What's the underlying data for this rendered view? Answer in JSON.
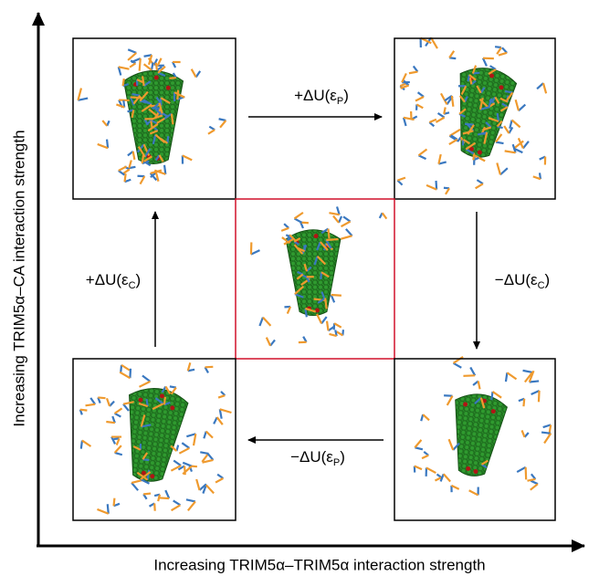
{
  "axes": {
    "y_label": "Increasing TRIM5α–CA interaction strength",
    "x_label": "Increasing TRIM5α–TRIM5α interaction strength"
  },
  "transitions": [
    {
      "text": "+ΔU(ε",
      "sub": "P",
      "close": ")"
    },
    {
      "text": "−ΔU(ε",
      "sub": "C",
      "close": ")"
    },
    {
      "text": "−ΔU(ε",
      "sub": "P",
      "close": ")"
    },
    {
      "text": "+ΔU(ε",
      "sub": "C",
      "close": ")"
    }
  ]
}
